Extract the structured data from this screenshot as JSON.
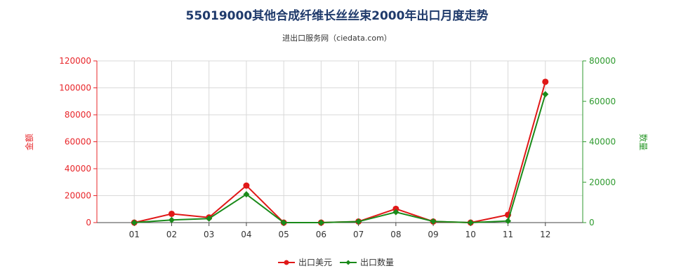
{
  "chart_data": {
    "type": "line",
    "title": "55019000其他合成纤维长丝丝束2000年出口月度走势",
    "subtitle": "进出口服务网（ciedata.com）",
    "categories": [
      "01",
      "02",
      "03",
      "04",
      "05",
      "06",
      "07",
      "08",
      "09",
      "10",
      "11",
      "12"
    ],
    "y_left": {
      "label": "金额",
      "ylim": [
        0,
        120000
      ],
      "ticks": [
        "0",
        "20000",
        "40000",
        "60000",
        "80000",
        "100000",
        "120000"
      ],
      "color": "#e8262a"
    },
    "y_right": {
      "label": "数量",
      "ylim": [
        0,
        80000
      ],
      "ticks": [
        "0",
        "20000",
        "40000",
        "60000",
        "80000"
      ],
      "color": "#2e9a2e"
    },
    "series": [
      {
        "name": "出口美元",
        "axis": "left",
        "color": "#e01818",
        "values": [
          0,
          6500,
          3800,
          27500,
          0,
          0,
          800,
          10200,
          800,
          0,
          5800,
          104500
        ]
      },
      {
        "name": "出口数量",
        "axis": "right",
        "color": "#1a8a1a",
        "values": [
          0,
          1300,
          2000,
          14000,
          0,
          0,
          500,
          5200,
          600,
          0,
          800,
          63500
        ]
      }
    ],
    "grid": true,
    "legend": "bottom"
  }
}
